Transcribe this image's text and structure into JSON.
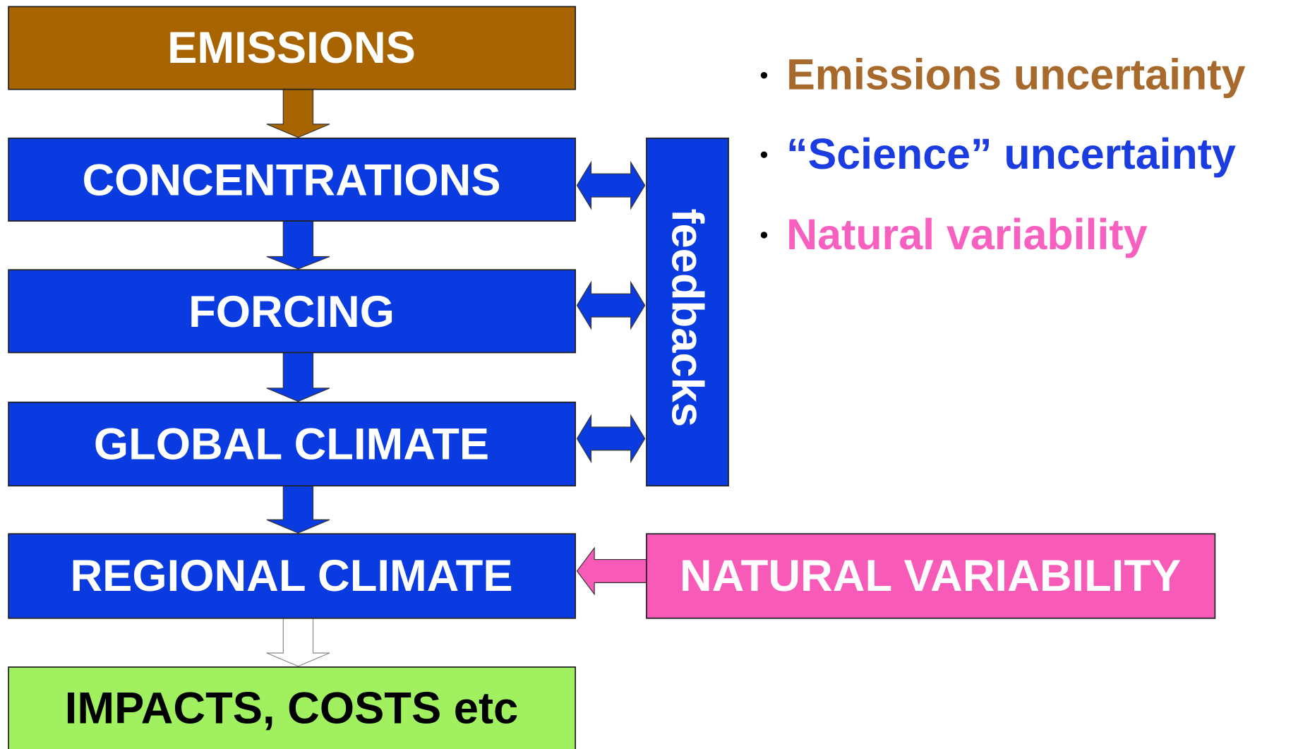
{
  "nodes": [
    {
      "label": "EMISSIONS"
    },
    {
      "label": "CONCENTRATIONS"
    },
    {
      "label": "FORCING"
    },
    {
      "label": "GLOBAL CLIMATE"
    },
    {
      "label": "REGIONAL CLIMATE"
    },
    {
      "label": "IMPACTS, COSTS etc"
    }
  ],
  "feedbacks": {
    "label": "feedbacks"
  },
  "natural_variability": {
    "label": "NATURAL VARIABILITY"
  },
  "bullets": [
    "Emissions uncertainty",
    "“Science” uncertainty",
    "Natural variability"
  ]
}
